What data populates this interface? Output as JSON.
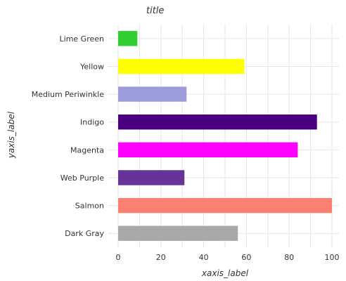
{
  "chart_data": {
    "type": "bar",
    "orientation": "horizontal",
    "title": "title",
    "xlabel": "xaxis_label",
    "ylabel": "yaxis_label",
    "xlim": [
      0,
      100
    ],
    "x_ticks": [
      0,
      20,
      40,
      60,
      80,
      100
    ],
    "grid": true,
    "categories": [
      "Dark Gray",
      "Salmon",
      "Web Purple",
      "Magenta",
      "Indigo",
      "Medium Periwinkle",
      "Yellow",
      "Lime Green"
    ],
    "values": [
      56,
      100,
      31,
      84,
      93,
      32,
      59,
      9
    ],
    "colors": [
      "#a9a9a9",
      "#fa8072",
      "#663399",
      "#ff00ff",
      "#4b0082",
      "#9c9cdb",
      "#ffff00",
      "#32cd32"
    ]
  }
}
